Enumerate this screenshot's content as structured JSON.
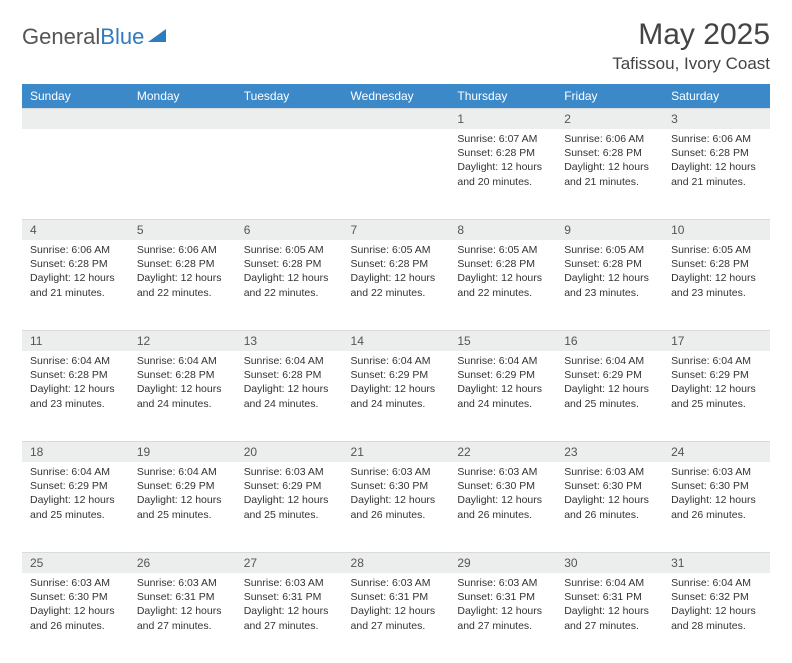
{
  "brand": {
    "part1": "General",
    "part2": "Blue"
  },
  "title": "May 2025",
  "location": "Tafissou, Ivory Coast",
  "colors": {
    "header_bg": "#3b89c9",
    "header_text": "#ffffff",
    "daynum_bg": "#eceded",
    "brand_blue": "#2f7bbf",
    "text": "#333333",
    "page_bg": "#ffffff"
  },
  "day_headers": [
    "Sunday",
    "Monday",
    "Tuesday",
    "Wednesday",
    "Thursday",
    "Friday",
    "Saturday"
  ],
  "weeks": [
    [
      {
        "day": "",
        "sunrise": "",
        "sunset": "",
        "daylight": ""
      },
      {
        "day": "",
        "sunrise": "",
        "sunset": "",
        "daylight": ""
      },
      {
        "day": "",
        "sunrise": "",
        "sunset": "",
        "daylight": ""
      },
      {
        "day": "",
        "sunrise": "",
        "sunset": "",
        "daylight": ""
      },
      {
        "day": "1",
        "sunrise": "Sunrise: 6:07 AM",
        "sunset": "Sunset: 6:28 PM",
        "daylight": "Daylight: 12 hours and 20 minutes."
      },
      {
        "day": "2",
        "sunrise": "Sunrise: 6:06 AM",
        "sunset": "Sunset: 6:28 PM",
        "daylight": "Daylight: 12 hours and 21 minutes."
      },
      {
        "day": "3",
        "sunrise": "Sunrise: 6:06 AM",
        "sunset": "Sunset: 6:28 PM",
        "daylight": "Daylight: 12 hours and 21 minutes."
      }
    ],
    [
      {
        "day": "4",
        "sunrise": "Sunrise: 6:06 AM",
        "sunset": "Sunset: 6:28 PM",
        "daylight": "Daylight: 12 hours and 21 minutes."
      },
      {
        "day": "5",
        "sunrise": "Sunrise: 6:06 AM",
        "sunset": "Sunset: 6:28 PM",
        "daylight": "Daylight: 12 hours and 22 minutes."
      },
      {
        "day": "6",
        "sunrise": "Sunrise: 6:05 AM",
        "sunset": "Sunset: 6:28 PM",
        "daylight": "Daylight: 12 hours and 22 minutes."
      },
      {
        "day": "7",
        "sunrise": "Sunrise: 6:05 AM",
        "sunset": "Sunset: 6:28 PM",
        "daylight": "Daylight: 12 hours and 22 minutes."
      },
      {
        "day": "8",
        "sunrise": "Sunrise: 6:05 AM",
        "sunset": "Sunset: 6:28 PM",
        "daylight": "Daylight: 12 hours and 22 minutes."
      },
      {
        "day": "9",
        "sunrise": "Sunrise: 6:05 AM",
        "sunset": "Sunset: 6:28 PM",
        "daylight": "Daylight: 12 hours and 23 minutes."
      },
      {
        "day": "10",
        "sunrise": "Sunrise: 6:05 AM",
        "sunset": "Sunset: 6:28 PM",
        "daylight": "Daylight: 12 hours and 23 minutes."
      }
    ],
    [
      {
        "day": "11",
        "sunrise": "Sunrise: 6:04 AM",
        "sunset": "Sunset: 6:28 PM",
        "daylight": "Daylight: 12 hours and 23 minutes."
      },
      {
        "day": "12",
        "sunrise": "Sunrise: 6:04 AM",
        "sunset": "Sunset: 6:28 PM",
        "daylight": "Daylight: 12 hours and 24 minutes."
      },
      {
        "day": "13",
        "sunrise": "Sunrise: 6:04 AM",
        "sunset": "Sunset: 6:28 PM",
        "daylight": "Daylight: 12 hours and 24 minutes."
      },
      {
        "day": "14",
        "sunrise": "Sunrise: 6:04 AM",
        "sunset": "Sunset: 6:29 PM",
        "daylight": "Daylight: 12 hours and 24 minutes."
      },
      {
        "day": "15",
        "sunrise": "Sunrise: 6:04 AM",
        "sunset": "Sunset: 6:29 PM",
        "daylight": "Daylight: 12 hours and 24 minutes."
      },
      {
        "day": "16",
        "sunrise": "Sunrise: 6:04 AM",
        "sunset": "Sunset: 6:29 PM",
        "daylight": "Daylight: 12 hours and 25 minutes."
      },
      {
        "day": "17",
        "sunrise": "Sunrise: 6:04 AM",
        "sunset": "Sunset: 6:29 PM",
        "daylight": "Daylight: 12 hours and 25 minutes."
      }
    ],
    [
      {
        "day": "18",
        "sunrise": "Sunrise: 6:04 AM",
        "sunset": "Sunset: 6:29 PM",
        "daylight": "Daylight: 12 hours and 25 minutes."
      },
      {
        "day": "19",
        "sunrise": "Sunrise: 6:04 AM",
        "sunset": "Sunset: 6:29 PM",
        "daylight": "Daylight: 12 hours and 25 minutes."
      },
      {
        "day": "20",
        "sunrise": "Sunrise: 6:03 AM",
        "sunset": "Sunset: 6:29 PM",
        "daylight": "Daylight: 12 hours and 25 minutes."
      },
      {
        "day": "21",
        "sunrise": "Sunrise: 6:03 AM",
        "sunset": "Sunset: 6:30 PM",
        "daylight": "Daylight: 12 hours and 26 minutes."
      },
      {
        "day": "22",
        "sunrise": "Sunrise: 6:03 AM",
        "sunset": "Sunset: 6:30 PM",
        "daylight": "Daylight: 12 hours and 26 minutes."
      },
      {
        "day": "23",
        "sunrise": "Sunrise: 6:03 AM",
        "sunset": "Sunset: 6:30 PM",
        "daylight": "Daylight: 12 hours and 26 minutes."
      },
      {
        "day": "24",
        "sunrise": "Sunrise: 6:03 AM",
        "sunset": "Sunset: 6:30 PM",
        "daylight": "Daylight: 12 hours and 26 minutes."
      }
    ],
    [
      {
        "day": "25",
        "sunrise": "Sunrise: 6:03 AM",
        "sunset": "Sunset: 6:30 PM",
        "daylight": "Daylight: 12 hours and 26 minutes."
      },
      {
        "day": "26",
        "sunrise": "Sunrise: 6:03 AM",
        "sunset": "Sunset: 6:31 PM",
        "daylight": "Daylight: 12 hours and 27 minutes."
      },
      {
        "day": "27",
        "sunrise": "Sunrise: 6:03 AM",
        "sunset": "Sunset: 6:31 PM",
        "daylight": "Daylight: 12 hours and 27 minutes."
      },
      {
        "day": "28",
        "sunrise": "Sunrise: 6:03 AM",
        "sunset": "Sunset: 6:31 PM",
        "daylight": "Daylight: 12 hours and 27 minutes."
      },
      {
        "day": "29",
        "sunrise": "Sunrise: 6:03 AM",
        "sunset": "Sunset: 6:31 PM",
        "daylight": "Daylight: 12 hours and 27 minutes."
      },
      {
        "day": "30",
        "sunrise": "Sunrise: 6:04 AM",
        "sunset": "Sunset: 6:31 PM",
        "daylight": "Daylight: 12 hours and 27 minutes."
      },
      {
        "day": "31",
        "sunrise": "Sunrise: 6:04 AM",
        "sunset": "Sunset: 6:32 PM",
        "daylight": "Daylight: 12 hours and 28 minutes."
      }
    ]
  ]
}
